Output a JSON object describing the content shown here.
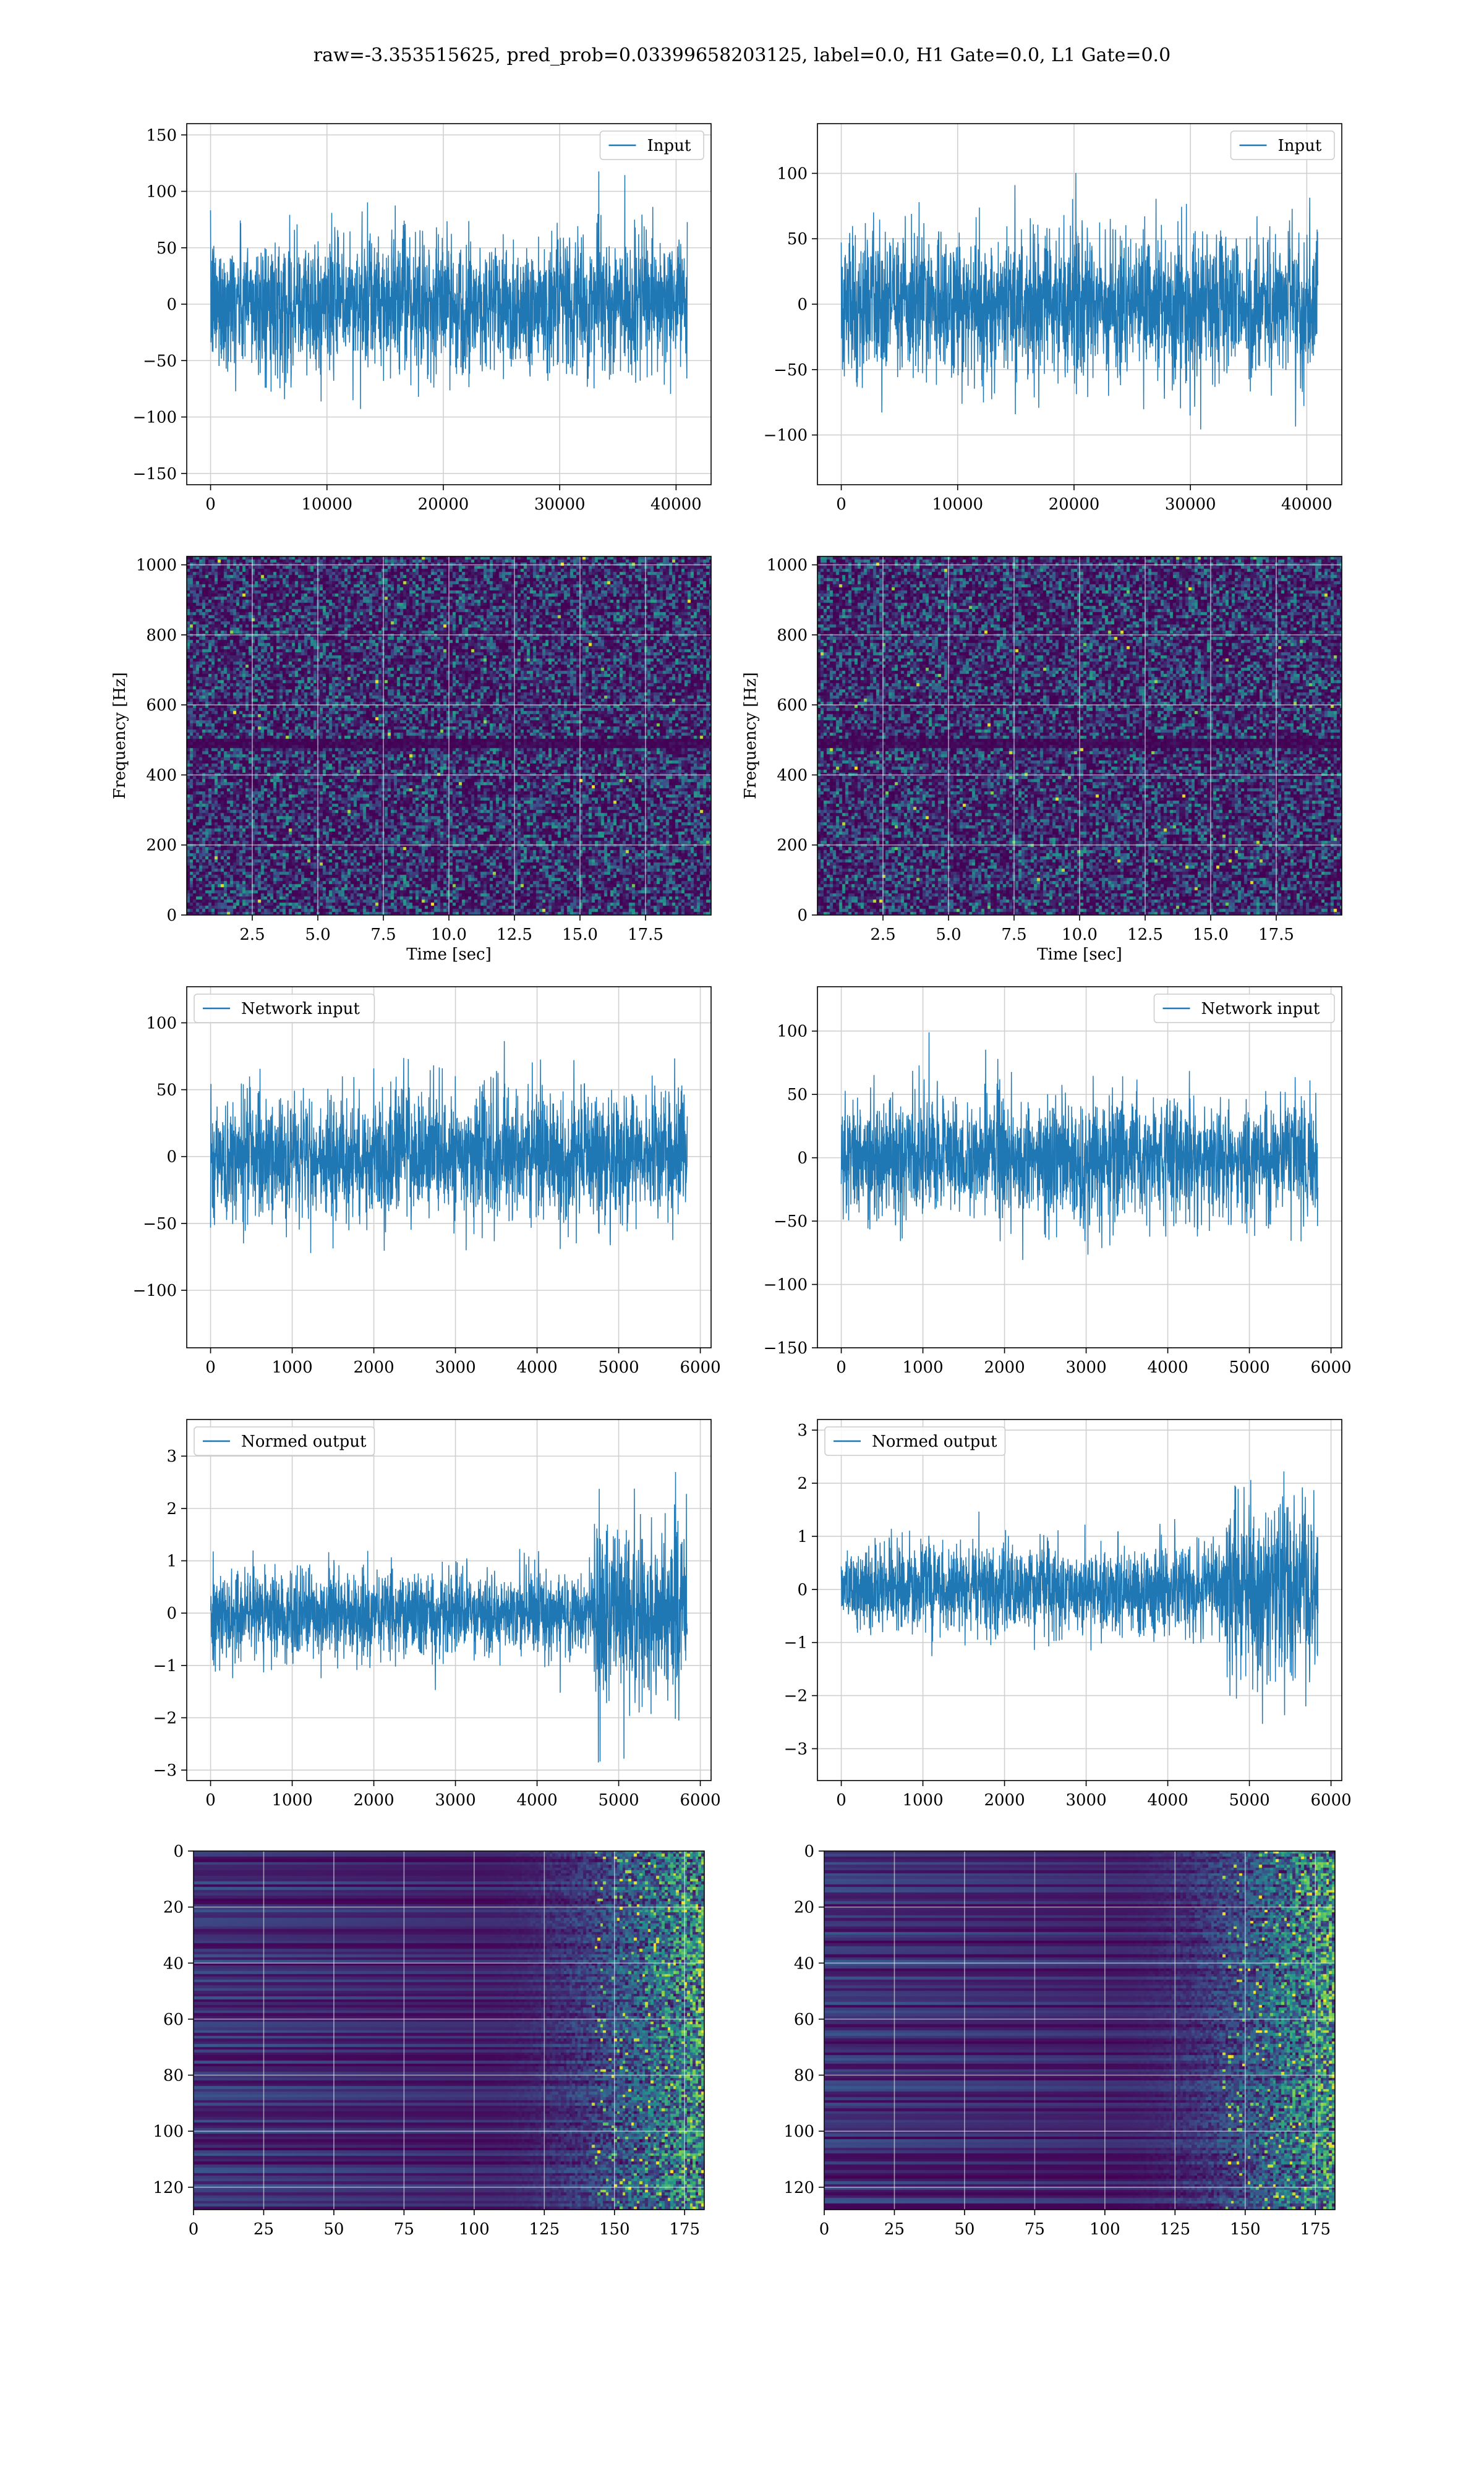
{
  "figure": {
    "title": "raw=-3.353515625, pred_prob=0.03399658203125, label=0.0, H1 Gate=0.0, L1 Gate=0.0"
  },
  "colors": {
    "line": "#1f77b4",
    "grid": "#d0d0d0",
    "viridis_low": "#440154",
    "viridis_mid": "#21918c",
    "viridis_high": "#fde725"
  },
  "chart_data": [
    {
      "id": "input-h1",
      "type": "line",
      "title": "",
      "xlabel": "",
      "ylabel": "",
      "series": [
        {
          "name": "Input"
        }
      ],
      "xlim": [
        -2048,
        43008
      ],
      "ylim": [
        -160,
        160
      ],
      "xticks": [
        0,
        10000,
        20000,
        30000,
        40000
      ],
      "xtick_labels": [
        "0",
        "10000",
        "20000",
        "30000",
        "40000"
      ],
      "yticks": [
        -150,
        -100,
        -50,
        0,
        50,
        100,
        150
      ],
      "ytick_labels": [
        "−150",
        "−100",
        "−50",
        "0",
        "50",
        "100",
        "150"
      ],
      "x_range": [
        0,
        40960
      ],
      "amplitude": 30,
      "envelope": [
        0,
        0,
        0,
        0,
        0
      ],
      "legend": "top-right",
      "grid": true
    },
    {
      "id": "input-l1",
      "type": "line",
      "title": "",
      "xlabel": "",
      "ylabel": "",
      "series": [
        {
          "name": "Input"
        }
      ],
      "xlim": [
        -2048,
        43008
      ],
      "ylim": [
        -138,
        138
      ],
      "xticks": [
        0,
        10000,
        20000,
        30000,
        40000
      ],
      "xtick_labels": [
        "0",
        "10000",
        "20000",
        "30000",
        "40000"
      ],
      "yticks": [
        -100,
        -50,
        0,
        50,
        100
      ],
      "ytick_labels": [
        "−100",
        "−50",
        "0",
        "50",
        "100"
      ],
      "x_range": [
        0,
        40960
      ],
      "amplitude": 28,
      "envelope": [
        0,
        0,
        0,
        0,
        0
      ],
      "legend": "top-right",
      "grid": true
    },
    {
      "id": "spec-h1",
      "type": "heatmap",
      "title": "",
      "xlabel": "Time [sec]",
      "ylabel": "Frequency [Hz]",
      "xlim": [
        0,
        20
      ],
      "ylim": [
        0,
        1024
      ],
      "xticks": [
        2.5,
        5.0,
        7.5,
        10.0,
        12.5,
        15.0,
        17.5
      ],
      "xtick_labels": [
        "2.5",
        "5.0",
        "7.5",
        "10.0",
        "12.5",
        "15.0",
        "17.5"
      ],
      "yticks": [
        0,
        200,
        400,
        600,
        800,
        1000
      ],
      "ytick_labels": [
        "0",
        "200",
        "400",
        "600",
        "800",
        "1000"
      ],
      "grid": true
    },
    {
      "id": "spec-l1",
      "type": "heatmap",
      "title": "",
      "xlabel": "Time [sec]",
      "ylabel": "Frequency [Hz]",
      "xlim": [
        0,
        20
      ],
      "ylim": [
        0,
        1024
      ],
      "xticks": [
        2.5,
        5.0,
        7.5,
        10.0,
        12.5,
        15.0,
        17.5
      ],
      "xtick_labels": [
        "2.5",
        "5.0",
        "7.5",
        "10.0",
        "12.5",
        "15.0",
        "17.5"
      ],
      "yticks": [
        0,
        200,
        400,
        600,
        800,
        1000
      ],
      "ytick_labels": [
        "0",
        "200",
        "400",
        "600",
        "800",
        "1000"
      ],
      "grid": true
    },
    {
      "id": "netin-h1",
      "type": "line",
      "title": "",
      "xlabel": "",
      "ylabel": "",
      "series": [
        {
          "name": "Network input"
        }
      ],
      "xlim": [
        -292,
        6132
      ],
      "ylim": [
        -143,
        127
      ],
      "xticks": [
        0,
        1000,
        2000,
        3000,
        4000,
        5000,
        6000
      ],
      "xtick_labels": [
        "0",
        "1000",
        "2000",
        "3000",
        "4000",
        "5000",
        "6000"
      ],
      "yticks": [
        -100,
        -50,
        0,
        50,
        100
      ],
      "ytick_labels": [
        "−100",
        "−50",
        "0",
        "50",
        "100"
      ],
      "x_range": [
        0,
        5840
      ],
      "amplitude": 24,
      "envelope": [
        0,
        0,
        0,
        0,
        0
      ],
      "legend": "top-left",
      "grid": true
    },
    {
      "id": "netin-l1",
      "type": "line",
      "title": "",
      "xlabel": "",
      "ylabel": "",
      "series": [
        {
          "name": "Network input"
        }
      ],
      "xlim": [
        -292,
        6132
      ],
      "ylim": [
        -150,
        135
      ],
      "xticks": [
        0,
        1000,
        2000,
        3000,
        4000,
        5000,
        6000
      ],
      "xtick_labels": [
        "0",
        "1000",
        "2000",
        "3000",
        "4000",
        "5000",
        "6000"
      ],
      "yticks": [
        -150,
        -100,
        -50,
        0,
        50,
        100
      ],
      "ytick_labels": [
        "−150",
        "−100",
        "−50",
        "0",
        "50",
        "100"
      ],
      "x_range": [
        0,
        5840
      ],
      "amplitude": 24,
      "envelope": [
        0,
        0,
        0,
        0,
        0
      ],
      "legend": "top-right",
      "grid": true
    },
    {
      "id": "normout-h1",
      "type": "line",
      "title": "",
      "xlabel": "",
      "ylabel": "",
      "series": [
        {
          "name": "Normed output"
        }
      ],
      "xlim": [
        -292,
        6132
      ],
      "ylim": [
        -3.2,
        3.7
      ],
      "xticks": [
        0,
        1000,
        2000,
        3000,
        4000,
        5000,
        6000
      ],
      "xtick_labels": [
        "0",
        "1000",
        "2000",
        "3000",
        "4000",
        "5000",
        "6000"
      ],
      "yticks": [
        -3,
        -2,
        -1,
        0,
        1,
        2,
        3
      ],
      "ytick_labels": [
        "−3",
        "−2",
        "−1",
        "0",
        "1",
        "2",
        "3"
      ],
      "x_range": [
        0,
        5840
      ],
      "amplitude": 0.42,
      "envelope": [
        4700,
        5840,
        2.0,
        0.2,
        0
      ],
      "legend": "top-left",
      "grid": true
    },
    {
      "id": "normout-l1",
      "type": "line",
      "title": "",
      "xlabel": "",
      "ylabel": "",
      "series": [
        {
          "name": "Normed output"
        }
      ],
      "xlim": [
        -292,
        6132
      ],
      "ylim": [
        -3.6,
        3.2
      ],
      "xticks": [
        0,
        1000,
        2000,
        3000,
        4000,
        5000,
        6000
      ],
      "xtick_labels": [
        "0",
        "1000",
        "2000",
        "3000",
        "4000",
        "5000",
        "6000"
      ],
      "yticks": [
        -3,
        -2,
        -1,
        0,
        1,
        2,
        3
      ],
      "ytick_labels": [
        "−3",
        "−2",
        "−1",
        "0",
        "1",
        "2",
        "3"
      ],
      "x_range": [
        0,
        5840
      ],
      "amplitude": 0.42,
      "envelope": [
        4700,
        5840,
        2.0,
        0.2,
        0
      ],
      "legend": "top-left",
      "grid": true
    },
    {
      "id": "feat-h1",
      "type": "heatmap",
      "title": "",
      "xlabel": "",
      "ylabel": "",
      "xlim": [
        0,
        182
      ],
      "ylim": [
        128,
        0
      ],
      "xticks": [
        0,
        25,
        50,
        75,
        100,
        125,
        150,
        175
      ],
      "xtick_labels": [
        "0",
        "25",
        "50",
        "75",
        "100",
        "125",
        "150",
        "175"
      ],
      "yticks": [
        0,
        20,
        40,
        60,
        80,
        100,
        120
      ],
      "ytick_labels": [
        "0",
        "20",
        "40",
        "60",
        "80",
        "100",
        "120"
      ],
      "grid": true
    },
    {
      "id": "feat-l1",
      "type": "heatmap",
      "title": "",
      "xlabel": "",
      "ylabel": "",
      "xlim": [
        0,
        182
      ],
      "ylim": [
        128,
        0
      ],
      "xticks": [
        0,
        25,
        50,
        75,
        100,
        125,
        150,
        175
      ],
      "xtick_labels": [
        "0",
        "25",
        "50",
        "75",
        "100",
        "125",
        "150",
        "175"
      ],
      "yticks": [
        0,
        20,
        40,
        60,
        80,
        100,
        120
      ],
      "ytick_labels": [
        "0",
        "20",
        "40",
        "60",
        "80",
        "100",
        "120"
      ],
      "grid": true
    }
  ]
}
